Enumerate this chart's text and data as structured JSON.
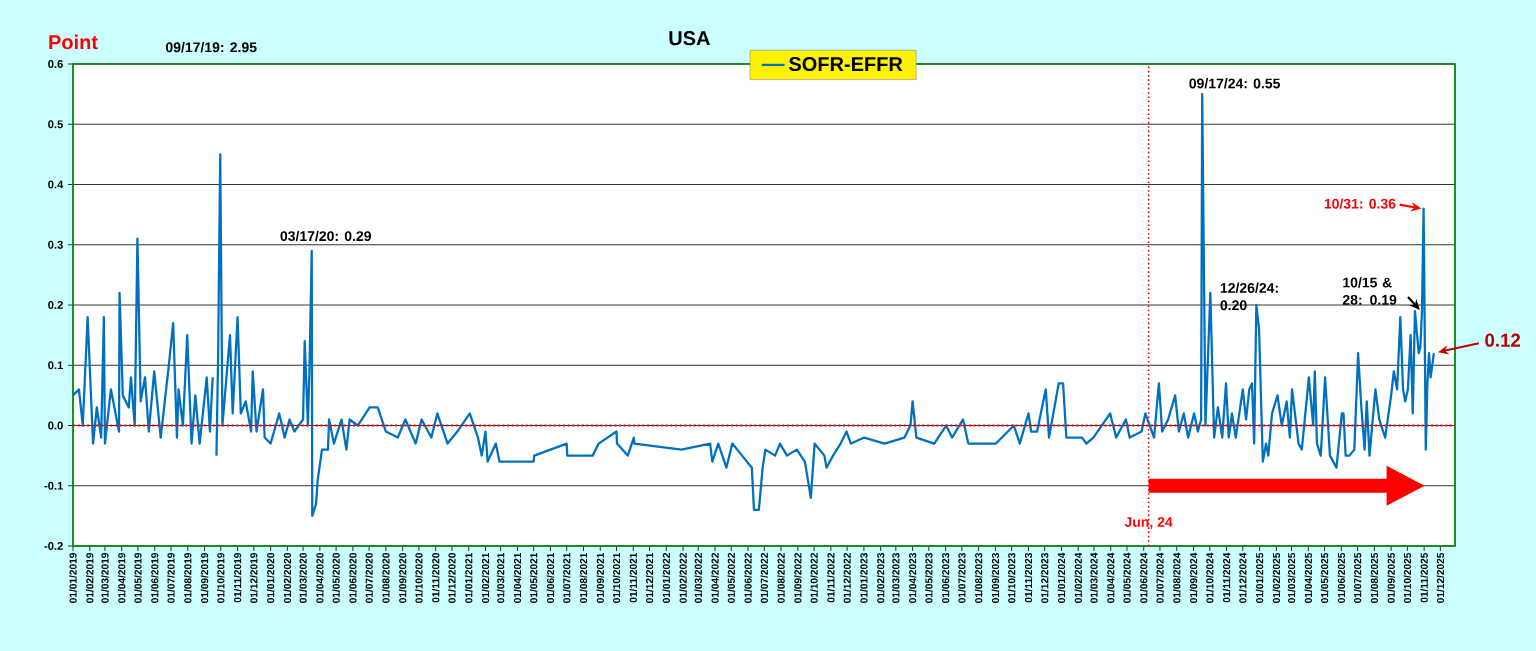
{
  "chart_data": {
    "type": "line",
    "title": "USA",
    "ylabel": "Point",
    "xlim": [
      "2019-01-01",
      "2025-12-28"
    ],
    "ylim": [
      -0.2,
      0.6
    ],
    "yticks": [
      -0.2,
      -0.1,
      {
        "value": 0,
        "label": "0.0"
      },
      0.1,
      0.2,
      0.3,
      0.4,
      0.5,
      0.6
    ],
    "xticks": [
      {
        "value": "2019-01-01",
        "label": "01/01/2019"
      },
      {
        "value": "2019-02-01",
        "label": "01/02/2019"
      },
      {
        "value": "2019-03-01",
        "label": "01/03/2019"
      },
      {
        "value": "2019-04-01",
        "label": "01/04/2019"
      },
      {
        "value": "2019-05-01",
        "label": "01/05/2019"
      },
      {
        "value": "2019-06-01",
        "label": "01/06/2019"
      },
      {
        "value": "2019-07-01",
        "label": "01/07/2019"
      },
      {
        "value": "2019-08-01",
        "label": "01/08/2019"
      },
      {
        "value": "2019-09-01",
        "label": "01/09/2019"
      },
      {
        "value": "2019-10-01",
        "label": "01/10/2019"
      },
      {
        "value": "2019-11-01",
        "label": "01/11/2019"
      },
      {
        "value": "2019-12-01",
        "label": "01/12/2019"
      },
      {
        "value": "2020-01-01",
        "label": "01/01/2020"
      },
      {
        "value": "2020-02-01",
        "label": "01/02/2020"
      },
      {
        "value": "2020-03-01",
        "label": "01/03/2020"
      },
      {
        "value": "2020-04-01",
        "label": "01/04/2020"
      },
      {
        "value": "2020-05-01",
        "label": "01/05/2020"
      },
      {
        "value": "2020-06-01",
        "label": "01/06/2020"
      },
      {
        "value": "2020-07-01",
        "label": "01/07/2020"
      },
      {
        "value": "2020-08-01",
        "label": "01/08/2020"
      },
      {
        "value": "2020-09-01",
        "label": "01/09/2020"
      },
      {
        "value": "2020-10-01",
        "label": "01/10/2020"
      },
      {
        "value": "2020-11-01",
        "label": "01/11/2020"
      },
      {
        "value": "2020-12-01",
        "label": "01/12/2020"
      },
      {
        "value": "2021-01-01",
        "label": "01/01/2021"
      },
      {
        "value": "2021-02-01",
        "label": "01/02/2021"
      },
      {
        "value": "2021-03-01",
        "label": "01/03/2021"
      },
      {
        "value": "2021-04-01",
        "label": "01/04/2021"
      },
      {
        "value": "2021-05-01",
        "label": "01/05/2021"
      },
      {
        "value": "2021-06-01",
        "label": "01/06/2021"
      },
      {
        "value": "2021-07-01",
        "label": "01/07/2021"
      },
      {
        "value": "2021-08-01",
        "label": "01/08/2021"
      },
      {
        "value": "2021-09-01",
        "label": "01/09/2021"
      },
      {
        "value": "2021-10-01",
        "label": "01/10/2021"
      },
      {
        "value": "2021-11-01",
        "label": "01/11/2021"
      },
      {
        "value": "2021-12-01",
        "label": "01/12/2021"
      },
      {
        "value": "2022-01-01",
        "label": "01/01/2022"
      },
      {
        "value": "2022-02-01",
        "label": "01/02/2022"
      },
      {
        "value": "2022-03-01",
        "label": "01/03/2022"
      },
      {
        "value": "2022-04-01",
        "label": "01/04/2022"
      },
      {
        "value": "2022-05-01",
        "label": "01/05/2022"
      },
      {
        "value": "2022-06-01",
        "label": "01/06/2022"
      },
      {
        "value": "2022-07-01",
        "label": "01/07/2022"
      },
      {
        "value": "2022-08-01",
        "label": "01/08/2022"
      },
      {
        "value": "2022-09-01",
        "label": "01/09/2022"
      },
      {
        "value": "2022-10-01",
        "label": "01/10/2022"
      },
      {
        "value": "2022-11-01",
        "label": "01/11/2022"
      },
      {
        "value": "2022-12-01",
        "label": "01/12/2022"
      },
      {
        "value": "2023-01-01",
        "label": "01/01/2023"
      },
      {
        "value": "2023-02-01",
        "label": "01/02/2023"
      },
      {
        "value": "2023-03-01",
        "label": "01/03/2023"
      },
      {
        "value": "2023-04-01",
        "label": "01/04/2023"
      },
      {
        "value": "2023-05-01",
        "label": "01/05/2023"
      },
      {
        "value": "2023-06-01",
        "label": "01/06/2023"
      },
      {
        "value": "2023-07-01",
        "label": "01/07/2023"
      },
      {
        "value": "2023-08-01",
        "label": "01/08/2023"
      },
      {
        "value": "2023-09-01",
        "label": "01/09/2023"
      },
      {
        "value": "2023-10-01",
        "label": "01/10/2023"
      },
      {
        "value": "2023-11-01",
        "label": "01/11/2023"
      },
      {
        "value": "2023-12-01",
        "label": "01/12/2023"
      },
      {
        "value": "2024-01-01",
        "label": "01/01/2024"
      },
      {
        "value": "2024-02-01",
        "label": "01/02/2024"
      },
      {
        "value": "2024-03-01",
        "label": "01/03/2024"
      },
      {
        "value": "2024-04-01",
        "label": "01/04/2024"
      },
      {
        "value": "2024-05-01",
        "label": "01/05/2024"
      },
      {
        "value": "2024-06-01",
        "label": "01/06/2024"
      },
      {
        "value": "2024-07-01",
        "label": "01/07/2024"
      },
      {
        "value": "2024-08-01",
        "label": "01/08/2024"
      },
      {
        "value": "2024-09-01",
        "label": "01/09/2024"
      },
      {
        "value": "2024-10-01",
        "label": "01/10/2024"
      },
      {
        "value": "2024-11-01",
        "label": "01/11/2024"
      },
      {
        "value": "2024-12-01",
        "label": "01/12/2024"
      },
      {
        "value": "2025-01-01",
        "label": "01/01/2025"
      },
      {
        "value": "2025-02-01",
        "label": "01/02/2025"
      },
      {
        "value": "2025-03-01",
        "label": "01/03/2025"
      },
      {
        "value": "2025-04-01",
        "label": "01/04/2025"
      },
      {
        "value": "2025-05-01",
        "label": "01/05/2025"
      },
      {
        "value": "2025-06-01",
        "label": "01/06/2025"
      },
      {
        "value": "2025-07-01",
        "label": "01/07/2025"
      },
      {
        "value": "2025-08-01",
        "label": "01/08/2025"
      },
      {
        "value": "2025-09-01",
        "label": "01/09/2025"
      },
      {
        "value": "2025-10-01",
        "label": "01/10/2025"
      },
      {
        "value": "2025-11-01",
        "label": "01/11/2025"
      },
      {
        "value": "2025-12-01",
        "label": "01/12/2025"
      }
    ],
    "grid": "y",
    "legend": "top",
    "ref_lines": [
      {
        "axis": "y",
        "value": 0,
        "color": "#ff0000",
        "line_style": "dotted"
      },
      {
        "axis": "x",
        "value": "2024-06-10",
        "label": "Jun, 24",
        "color": "#ff0000",
        "line_style": "dotted"
      }
    ],
    "annotations": [
      "09/17/19: 2.95",
      {
        "text": "03/17/20: 0.29",
        "x": "2020-03-17",
        "y": 0.29
      },
      {
        "text": "09/17/24: 0.55",
        "x": "2024-09-17",
        "y": 0.55
      },
      {
        "text": "12/26/24: 0.20",
        "x": "2024-12-26",
        "y": 0.2
      },
      {
        "text": "10/31: 0.36",
        "x": "2025-10-31",
        "y": 0.36
      },
      {
        "text": "10/15 & 28: 0.19",
        "x": "2025-10-28",
        "y": 0.19
      },
      {
        "text": "0.12",
        "x": "2025-11-19",
        "y": 0.12
      }
    ],
    "series": [
      {
        "name": "SOFR-EFFR",
        "color": "#0070c0",
        "line_style": "solid",
        "x": [
          "2019-01-01",
          "2019-01-12",
          "2019-01-19",
          "2019-01-28",
          "2019-02-07",
          "2019-02-14",
          "2019-02-22",
          "2019-02-27",
          "2019-03-01",
          "2019-03-12",
          "2019-03-27",
          "2019-03-28",
          "2019-04-03",
          "2019-04-14",
          "2019-04-18",
          "2019-04-25",
          "2019-04-30",
          "2019-05-06",
          "2019-05-14",
          "2019-05-21",
          "2019-05-31",
          "2019-06-12",
          "2019-06-27",
          "2019-07-05",
          "2019-07-12",
          "2019-07-15",
          "2019-07-23",
          "2019-07-31",
          "2019-08-08",
          "2019-08-15",
          "2019-08-23",
          "2019-09-05",
          "2019-09-11",
          "2019-09-16",
          "2019-09-17",
          "2019-09-23",
          "2019-09-26",
          "2019-09-30",
          "2019-10-04",
          "2019-10-18",
          "2019-10-23",
          "2019-11-01",
          "2019-11-07",
          "2019-11-16",
          "2019-11-26",
          "2019-11-29",
          "2019-12-06",
          "2019-12-18",
          "2019-12-21",
          "2020-01-01",
          "2020-01-17",
          "2020-01-27",
          "2020-02-05",
          "2020-02-14",
          "2020-03-01",
          "2020-03-04",
          "2020-03-10",
          "2020-03-13",
          "2020-03-17",
          "2020-03-18",
          "2020-03-25",
          "2020-03-28",
          "2020-04-05",
          "2020-04-16",
          "2020-04-18",
          "2020-04-27",
          "2020-05-11",
          "2020-05-20",
          "2020-05-26",
          "2020-06-10",
          "2020-07-02",
          "2020-07-17",
          "2020-08-01",
          "2020-08-23",
          "2020-09-06",
          "2020-09-25",
          "2020-10-06",
          "2020-10-24",
          "2020-11-04",
          "2020-11-23",
          "2020-12-11",
          "2021-01-03",
          "2021-01-18",
          "2021-01-25",
          "2021-02-01",
          "2021-02-05",
          "2021-02-20",
          "2021-02-27",
          "2021-05-01",
          "2021-05-02",
          "2021-07-01",
          "2021-07-02",
          "2021-08-18",
          "2021-08-29",
          "2021-10-01",
          "2021-10-02",
          "2021-10-22",
          "2021-11-02",
          "2021-11-03",
          "2022-01-29",
          "2022-03-23",
          "2022-03-27",
          "2022-04-07",
          "2022-04-22",
          "2022-05-03",
          "2022-05-21",
          "2022-06-08",
          "2022-06-12",
          "2022-06-21",
          "2022-06-28",
          "2022-07-03",
          "2022-07-21",
          "2022-07-30",
          "2022-08-12",
          "2022-08-30",
          "2022-09-14",
          "2022-09-25",
          "2022-10-02",
          "2022-10-20",
          "2022-10-24",
          "2022-11-05",
          "2022-11-19",
          "2022-11-30",
          "2022-12-08",
          "2023-01-02",
          "2023-02-08",
          "2023-03-17",
          "2023-03-28",
          "2023-04-01",
          "2023-04-08",
          "2023-05-11",
          "2023-06-02",
          "2023-06-13",
          "2023-07-03",
          "2023-07-13",
          "2023-09-02",
          "2023-10-05",
          "2023-10-16",
          "2023-11-01",
          "2023-11-06",
          "2023-11-17",
          "2023-12-03",
          "2023-12-09",
          "2023-12-27",
          "2024-01-04",
          "2024-01-10",
          "2024-02-08",
          "2024-02-16",
          "2024-02-29",
          "2024-03-31",
          "2024-04-11",
          "2024-04-29",
          "2024-05-06",
          "2024-05-28",
          "2024-06-04",
          "2024-06-20",
          "2024-06-29",
          "2024-07-05",
          "2024-07-16",
          "2024-07-29",
          "2024-08-05",
          "2024-08-14",
          "2024-08-22",
          "2024-09-02",
          "2024-09-09",
          "2024-09-15",
          "2024-09-17",
          "2024-09-23",
          "2024-10-02",
          "2024-10-09",
          "2024-10-16",
          "2024-10-24",
          "2024-10-31",
          "2024-11-05",
          "2024-11-11",
          "2024-11-18",
          "2024-12-01",
          "2024-12-07",
          "2024-12-13",
          "2024-12-18",
          "2024-12-22",
          "2024-12-26",
          "2024-12-31",
          "2025-01-07",
          "2025-01-13",
          "2025-01-17",
          "2025-01-24",
          "2025-02-03",
          "2025-02-11",
          "2025-02-20",
          "2025-02-26",
          "2025-03-02",
          "2025-03-14",
          "2025-03-20",
          "2025-04-02",
          "2025-04-10",
          "2025-04-13",
          "2025-04-17",
          "2025-04-24",
          "2025-05-02",
          "2025-05-11",
          "2025-05-23",
          "2025-06-02",
          "2025-06-05",
          "2025-06-09",
          "2025-06-16",
          "2025-06-25",
          "2025-07-02",
          "2025-07-08",
          "2025-07-14",
          "2025-07-18",
          "2025-07-23",
          "2025-08-03",
          "2025-08-10",
          "2025-08-21",
          "2025-09-01",
          "2025-09-06",
          "2025-09-12",
          "2025-09-18",
          "2025-09-23",
          "2025-09-27",
          "2025-10-02",
          "2025-10-07",
          "2025-10-11",
          "2025-10-15",
          "2025-10-22",
          "2025-10-25",
          "2025-10-28",
          "2025-10-31",
          "2025-11-04",
          "2025-11-07",
          "2025-11-10",
          "2025-11-13",
          "2025-11-19"
        ],
        "values": [
          0.05,
          0.06,
          0.0,
          0.18,
          -0.03,
          0.03,
          -0.02,
          0.18,
          -0.03,
          0.06,
          -0.01,
          0.22,
          0.05,
          0.03,
          0.08,
          0.0,
          0.31,
          0.04,
          0.08,
          -0.01,
          0.09,
          -0.02,
          0.1,
          0.17,
          -0.02,
          0.06,
          0.0,
          0.15,
          -0.03,
          0.05,
          -0.03,
          0.08,
          -0.01,
          0.08,
          null,
          -0.05,
          0.11,
          0.45,
          0.0,
          0.15,
          0.02,
          0.18,
          0.02,
          0.04,
          -0.01,
          0.09,
          -0.01,
          0.06,
          -0.02,
          -0.03,
          0.02,
          -0.02,
          0.01,
          -0.01,
          0.01,
          0.14,
          0.0,
          0.1,
          0.29,
          -0.15,
          -0.13,
          -0.09,
          -0.04,
          -0.04,
          0.01,
          -0.03,
          0.01,
          -0.04,
          0.01,
          0.0,
          0.03,
          0.03,
          -0.01,
          -0.02,
          0.01,
          -0.03,
          0.01,
          -0.02,
          0.02,
          -0.03,
          -0.01,
          0.02,
          -0.02,
          -0.05,
          -0.01,
          -0.06,
          -0.03,
          -0.06,
          -0.06,
          -0.05,
          -0.03,
          -0.05,
          -0.05,
          -0.03,
          -0.01,
          -0.03,
          -0.05,
          -0.02,
          -0.03,
          -0.04,
          -0.03,
          -0.06,
          -0.03,
          -0.07,
          -0.03,
          -0.05,
          -0.07,
          -0.14,
          -0.14,
          -0.07,
          -0.04,
          -0.05,
          -0.03,
          -0.05,
          -0.04,
          -0.06,
          -0.12,
          -0.03,
          -0.05,
          -0.07,
          -0.05,
          -0.03,
          -0.01,
          -0.03,
          -0.02,
          -0.03,
          -0.02,
          0.0,
          0.04,
          -0.02,
          -0.03,
          0.0,
          -0.02,
          0.01,
          -0.03,
          -0.03,
          0.0,
          -0.03,
          0.02,
          -0.01,
          -0.01,
          0.06,
          -0.02,
          0.07,
          0.07,
          -0.02,
          -0.02,
          -0.03,
          -0.02,
          0.02,
          -0.02,
          0.01,
          -0.02,
          -0.01,
          0.02,
          -0.02,
          0.07,
          -0.01,
          0.01,
          0.05,
          -0.01,
          0.02,
          -0.02,
          0.02,
          -0.01,
          0.01,
          0.55,
          0.0,
          0.22,
          -0.02,
          0.03,
          -0.02,
          0.07,
          -0.02,
          0.02,
          -0.02,
          0.06,
          0.01,
          0.06,
          0.07,
          -0.03,
          0.2,
          0.16,
          -0.06,
          -0.03,
          -0.05,
          0.02,
          0.05,
          0.0,
          0.04,
          -0.02,
          0.06,
          -0.03,
          -0.04,
          0.08,
          0.0,
          0.09,
          -0.03,
          -0.05,
          0.08,
          -0.05,
          -0.07,
          0.02,
          0.02,
          -0.05,
          -0.05,
          -0.04,
          0.12,
          0.03,
          -0.04,
          0.04,
          -0.05,
          0.06,
          0.01,
          -0.02,
          0.05,
          0.09,
          0.06,
          0.18,
          0.06,
          0.04,
          0.06,
          0.15,
          0.02,
          0.19,
          0.12,
          0.13,
          0.19,
          0.36,
          -0.04,
          0.07,
          0.12,
          0.08,
          0.12
        ]
      }
    ]
  }
}
